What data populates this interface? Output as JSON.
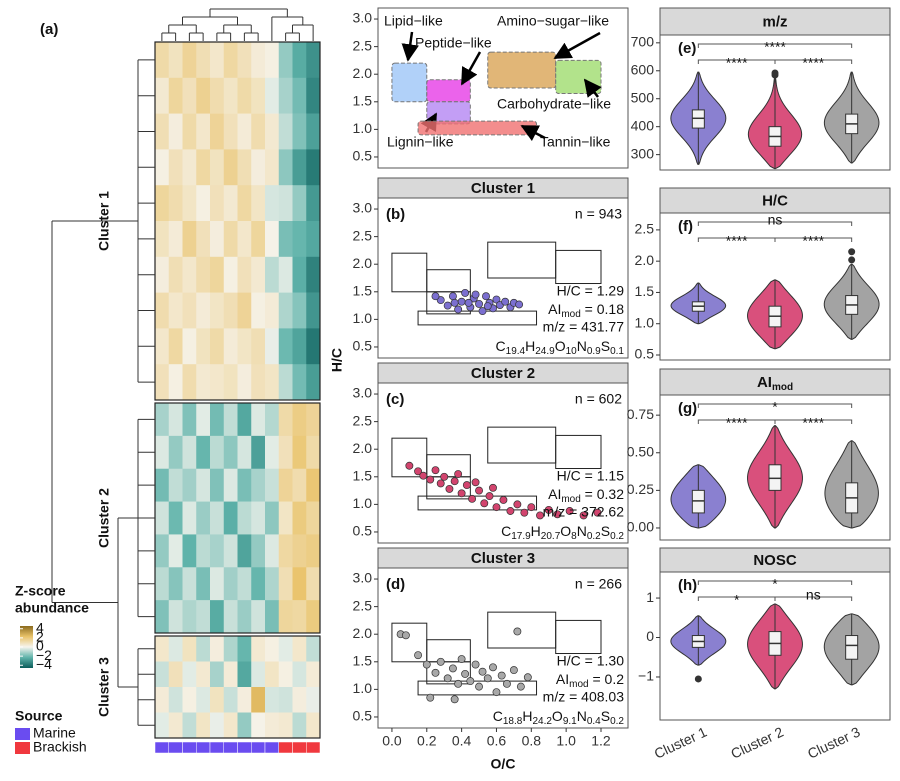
{
  "chart_data": [
    {
      "type": "heatmap",
      "panel_label": "(a)",
      "clusters": [
        {
          "label": "Cluster 1",
          "rows": [
            [
              1.2,
              0.8,
              1.5,
              1.0,
              0.6,
              1.3,
              0.9,
              0.4,
              0.2,
              -1.5,
              -2.5,
              -3.2
            ],
            [
              0.5,
              1.4,
              0.9,
              1.6,
              1.1,
              0.7,
              1.2,
              0.8,
              -0.3,
              -1.2,
              -2.0,
              -3.5
            ],
            [
              1.0,
              0.3,
              1.2,
              0.6,
              1.5,
              0.9,
              0.4,
              1.1,
              0.5,
              -0.8,
              -1.8,
              -2.8
            ],
            [
              0.2,
              0.9,
              0.5,
              1.3,
              0.8,
              1.6,
              1.0,
              0.3,
              0.6,
              -1.6,
              -2.9,
              -3.8
            ],
            [
              1.4,
              1.1,
              0.7,
              0.2,
              0.9,
              0.5,
              1.3,
              0.7,
              -0.5,
              -0.6,
              -1.5,
              -3.0
            ],
            [
              0.8,
              0.4,
              1.6,
              0.9,
              0.3,
              1.2,
              0.6,
              1.4,
              0.1,
              -1.9,
              -2.2,
              -2.6
            ],
            [
              0.3,
              1.0,
              0.6,
              1.1,
              1.4,
              0.2,
              0.9,
              0.5,
              -0.9,
              -0.4,
              -2.4,
              -3.6
            ],
            [
              1.1,
              0.6,
              0.9,
              0.4,
              0.7,
              1.0,
              1.5,
              0.2,
              0.4,
              -1.1,
              -1.7,
              -3.1
            ],
            [
              0.6,
              1.3,
              0.2,
              0.8,
              1.2,
              0.4,
              0.7,
              1.0,
              -0.2,
              -2.1,
              -2.7,
              -3.9
            ],
            [
              0.9,
              0.2,
              1.1,
              0.5,
              0.6,
              0.8,
              0.3,
              0.9,
              0.7,
              -0.9,
              -2.0,
              -2.9
            ]
          ]
        },
        {
          "label": "Cluster 2",
          "rows": [
            [
              -1.2,
              -0.5,
              -1.8,
              -0.3,
              -2.0,
              -0.8,
              -2.6,
              -0.4,
              -1.0,
              1.2,
              1.8,
              1.5
            ],
            [
              -0.4,
              -1.5,
              -0.6,
              -2.2,
              -0.9,
              -1.6,
              -0.5,
              -2.8,
              -0.3,
              0.9,
              2.0,
              1.2
            ],
            [
              -2.0,
              -0.8,
              -1.3,
              -0.5,
              -1.8,
              -0.4,
              -1.9,
              -1.2,
              -0.7,
              1.5,
              1.1,
              2.1
            ],
            [
              -0.6,
              -2.1,
              -0.4,
              -1.4,
              -0.7,
              -2.4,
              -0.9,
              -0.5,
              -1.6,
              0.7,
              1.9,
              1.4
            ],
            [
              -1.5,
              -0.3,
              -2.3,
              -0.9,
              -1.2,
              -0.6,
              -2.7,
              -1.5,
              -0.4,
              1.3,
              1.6,
              1.8
            ],
            [
              -0.9,
              -1.7,
              -0.7,
              -1.9,
              -0.4,
              -1.3,
              -0.8,
              -2.2,
              -1.1,
              1.0,
              2.2,
              1.1
            ],
            [
              -1.8,
              -0.6,
              -1.1,
              -0.8,
              -2.5,
              -0.7,
              -1.4,
              -0.6,
              -1.9,
              1.4,
              1.3,
              1.9
            ]
          ]
        },
        {
          "label": "Cluster 3",
          "rows": [
            [
              0.6,
              -0.4,
              0.8,
              -0.9,
              0.3,
              -1.1,
              -2.2,
              0.5,
              0.2,
              -0.3,
              0.6,
              -0.8
            ],
            [
              -0.7,
              0.9,
              -0.3,
              0.5,
              -1.2,
              0.4,
              -2.6,
              -0.4,
              0.7,
              0.2,
              -0.5,
              0.4
            ],
            [
              0.4,
              -0.6,
              0.2,
              -0.4,
              0.8,
              -0.7,
              0.3,
              2.5,
              -0.5,
              -0.6,
              0.3,
              -0.2
            ],
            [
              -0.3,
              0.5,
              -0.8,
              0.7,
              -0.2,
              0.6,
              -1.5,
              0.1,
              0.4,
              0.5,
              -0.9,
              0.6
            ]
          ]
        }
      ],
      "sample_source": [
        0,
        0,
        0,
        0,
        0,
        0,
        0,
        0,
        0,
        1,
        1,
        1
      ],
      "legend_title": [
        "Z-score",
        "abundance"
      ],
      "zlim": [
        -4.6,
        4.6
      ],
      "color_stops": [
        "#0b5d5b",
        "#5fb3aa",
        "#f6f4ee",
        "#e9c268",
        "#8a6a1e"
      ],
      "zticks": [
        4,
        2,
        0,
        {
          "value": -2,
          "label": "−2"
        },
        {
          "value": -4,
          "label": "−4"
        }
      ],
      "source_title": "Source",
      "sources": [
        {
          "name": "Marine",
          "color": "#6a4cf0"
        },
        {
          "name": "Brackish",
          "color": "#f0383e"
        }
      ]
    },
    {
      "type": "regions",
      "xlim": [
        -0.08,
        1.355
      ],
      "ylim": [
        0.3,
        3.2
      ],
      "yticks": [
        0.5,
        {
          "value": 1,
          "label": "1.0"
        },
        1.5,
        {
          "value": 2,
          "label": "2.0"
        },
        2.5,
        {
          "value": 3,
          "label": "3.0"
        }
      ],
      "regions": [
        {
          "name": "Lipid−like",
          "color": "#9ec5f7",
          "x": [
            0,
            0.2
          ],
          "y": [
            1.5,
            2.2
          ]
        },
        {
          "name": "Peptide−like",
          "color": "#e63ce6",
          "x": [
            0.2,
            0.45
          ],
          "y": [
            1.5,
            1.9
          ]
        },
        {
          "name": "Amino−sugar−like",
          "color": "#d9a455",
          "x": [
            0.55,
            0.94
          ],
          "y": [
            1.75,
            2.4
          ]
        },
        {
          "name": "Carbohydrate−like",
          "color": "#9fdc6e",
          "x": [
            0.94,
            1.2
          ],
          "y": [
            1.65,
            2.25
          ]
        },
        {
          "name": "Lignin−like",
          "color": "#b486f2",
          "x": [
            0.2,
            0.45
          ],
          "y": [
            1.1,
            1.5
          ]
        },
        {
          "name": "Tannin−like",
          "color": "#f07070",
          "x": [
            0.15,
            0.83
          ],
          "y": [
            0.9,
            1.15
          ]
        }
      ]
    },
    {
      "type": "scatter",
      "title": "Cluster 1",
      "panel_label": "(b)",
      "n_label": "n = 943",
      "color": "#7b6fd0",
      "xlim": [
        -0.08,
        1.355
      ],
      "ylim": [
        0.3,
        3.2
      ],
      "yticks": [
        0.5,
        {
          "value": 1,
          "label": "1.0"
        },
        1.5,
        {
          "value": 2,
          "label": "2.0"
        },
        2.5,
        {
          "value": 3,
          "label": "3.0"
        }
      ],
      "x": [
        0.28,
        0.32,
        0.35,
        0.38,
        0.4,
        0.42,
        0.45,
        0.47,
        0.5,
        0.52,
        0.54,
        0.56,
        0.58,
        0.6,
        0.62,
        0.65,
        0.68,
        0.7,
        0.73,
        0.44,
        0.36,
        0.48,
        0.55,
        0.25
      ],
      "y": [
        1.35,
        1.25,
        1.42,
        1.18,
        1.32,
        1.48,
        1.22,
        1.38,
        1.28,
        1.15,
        1.42,
        1.3,
        1.2,
        1.36,
        1.26,
        1.32,
        1.22,
        1.3,
        1.27,
        1.3,
        1.3,
        1.45,
        1.24,
        1.42
      ],
      "hc_text": "H/C = 1.29",
      "ai_main": "AI",
      "ai_sub": "mod",
      "ai_text": " = 0.18",
      "mz_text": "m/z = 431.77",
      "formula": [
        [
          "C",
          "19.4"
        ],
        [
          "H",
          "24.9"
        ],
        [
          "O",
          "10"
        ],
        [
          "N",
          "0.9"
        ],
        [
          "S",
          "0.1"
        ]
      ]
    },
    {
      "type": "scatter",
      "title": "Cluster 2",
      "panel_label": "(c)",
      "n_label": "n = 602",
      "color": "#d2446e",
      "xlim": [
        -0.08,
        1.355
      ],
      "ylim": [
        0.3,
        3.2
      ],
      "y_label": "H/C",
      "yticks": [
        0.5,
        {
          "value": 1,
          "label": "1.0"
        },
        1.5,
        {
          "value": 2,
          "label": "2.0"
        },
        2.5,
        {
          "value": 3,
          "label": "3.0"
        }
      ],
      "x": [
        0.1,
        0.15,
        0.18,
        0.22,
        0.25,
        0.28,
        0.3,
        0.33,
        0.36,
        0.4,
        0.43,
        0.46,
        0.5,
        0.53,
        0.56,
        0.6,
        0.64,
        0.68,
        0.72,
        0.76,
        0.8,
        0.85,
        0.9,
        0.95,
        1.02,
        1.1,
        1.18,
        0.38,
        0.48,
        0.58
      ],
      "y": [
        1.7,
        1.6,
        1.52,
        1.45,
        1.62,
        1.38,
        1.5,
        1.28,
        1.42,
        1.2,
        1.35,
        1.1,
        1.25,
        1.02,
        1.15,
        0.95,
        1.08,
        0.88,
        1.0,
        0.85,
        0.95,
        0.8,
        0.9,
        0.82,
        0.88,
        0.8,
        0.85,
        1.55,
        1.4,
        1.3
      ],
      "hc_text": "H/C = 1.15",
      "ai_main": "AI",
      "ai_sub": "mod",
      "ai_text": " = 0.32",
      "mz_text": "m/z = 372.62",
      "formula": [
        [
          "C",
          "17.9"
        ],
        [
          "H",
          "20.7"
        ],
        [
          "O",
          "8"
        ],
        [
          "N",
          "0.2"
        ],
        [
          "S",
          "0.2"
        ]
      ]
    },
    {
      "type": "scatter",
      "title": "Cluster 3",
      "panel_label": "(d)",
      "n_label": "n = 266",
      "color": "#a8a8a8",
      "xlim": [
        -0.08,
        1.355
      ],
      "ylim": [
        0.3,
        3.2
      ],
      "x_label": "O/C",
      "xticks": [
        {
          "value": 0,
          "label": "0.0"
        },
        0.2,
        0.4,
        0.6,
        0.8,
        {
          "value": 1,
          "label": "1.0"
        },
        1.2
      ],
      "yticks": [
        0.5,
        {
          "value": 1,
          "label": "1.0"
        },
        1.5,
        {
          "value": 2,
          "label": "2.0"
        },
        2.5,
        {
          "value": 3,
          "label": "3.0"
        }
      ],
      "x": [
        0.05,
        0.08,
        0.15,
        0.2,
        0.25,
        0.28,
        0.32,
        0.35,
        0.38,
        0.4,
        0.42,
        0.45,
        0.48,
        0.5,
        0.52,
        0.55,
        0.58,
        0.6,
        0.63,
        0.66,
        0.7,
        0.74,
        0.78,
        0.72,
        0.22,
        0.36
      ],
      "y": [
        2.0,
        1.98,
        1.62,
        1.45,
        1.3,
        1.5,
        1.2,
        1.38,
        1.1,
        1.55,
        1.28,
        1.15,
        1.45,
        1.05,
        1.32,
        1.2,
        1.4,
        0.95,
        1.25,
        1.1,
        1.35,
        1.05,
        1.22,
        2.05,
        0.85,
        0.82
      ],
      "hc_text": "H/C = 1.30",
      "ai_main": "AI",
      "ai_sub": "mod",
      "ai_text": " = 0.2",
      "mz_text": "m/z = 408.03",
      "formula": [
        [
          "C",
          "18.8"
        ],
        [
          "H",
          "24.2"
        ],
        [
          "O",
          "9.1"
        ],
        [
          "N",
          "0.4"
        ],
        [
          "S",
          "0.2"
        ]
      ]
    },
    {
      "type": "violin",
      "title": "m/z",
      "panel_label": "(e)",
      "colors": [
        "#8a80d0",
        "#d9507c",
        "#a3a3a3"
      ],
      "ylim": [
        245,
        728
      ],
      "yticks": [
        300,
        400,
        500,
        600,
        700
      ],
      "stats": [
        {
          "min": 265,
          "q1": 395,
          "median": 430,
          "q3": 460,
          "max": 595,
          "outliers": []
        },
        {
          "min": 250,
          "q1": 330,
          "median": 365,
          "q3": 400,
          "max": 575,
          "outliers": [
            585,
            592
          ]
        },
        {
          "min": 270,
          "q1": 375,
          "median": 410,
          "q3": 445,
          "max": 595,
          "outliers": []
        }
      ],
      "signif": [
        {
          "pair": [
            0,
            2
          ],
          "label": "****"
        },
        {
          "pair": [
            0,
            1
          ],
          "label": "****"
        },
        {
          "pair": [
            1,
            2
          ],
          "label": "****"
        }
      ]
    },
    {
      "type": "violin",
      "title": "H/C",
      "panel_label": "(f)",
      "colors": [
        "#8a80d0",
        "#d9507c",
        "#a3a3a3"
      ],
      "ylim": [
        0.42,
        2.77
      ],
      "yticks": [
        0.5,
        {
          "value": 1,
          "label": "1.0"
        },
        1.5,
        {
          "value": 2,
          "label": "2.0"
        },
        2.5
      ],
      "stats": [
        {
          "min": 1.0,
          "q1": 1.2,
          "median": 1.28,
          "q3": 1.35,
          "max": 1.65,
          "outliers": []
        },
        {
          "min": 0.6,
          "q1": 0.95,
          "median": 1.12,
          "q3": 1.28,
          "max": 1.7,
          "outliers": []
        },
        {
          "min": 0.75,
          "q1": 1.15,
          "median": 1.3,
          "q3": 1.45,
          "max": 1.95,
          "outliers": [
            2.02,
            2.15
          ]
        }
      ],
      "signif": [
        {
          "pair": [
            0,
            2
          ],
          "label": "ns"
        },
        {
          "pair": [
            0,
            1
          ],
          "label": "****"
        },
        {
          "pair": [
            1,
            2
          ],
          "label": "****"
        }
      ]
    },
    {
      "type": "violin",
      "title": "AI",
      "title_sub": "mod",
      "panel_label": "(g)",
      "colors": [
        "#8a80d0",
        "#d9507c",
        "#a3a3a3"
      ],
      "ylim": [
        -0.08,
        0.884
      ],
      "yticks": [
        {
          "value": 0,
          "label": "0.00"
        },
        0.25,
        {
          "value": 0.5,
          "label": "0.50"
        },
        0.75
      ],
      "stats": [
        {
          "min": 0,
          "q1": 0.1,
          "median": 0.18,
          "q3": 0.25,
          "max": 0.42,
          "outliers": []
        },
        {
          "min": 0,
          "q1": 0.25,
          "median": 0.33,
          "q3": 0.42,
          "max": 0.68,
          "outliers": []
        },
        {
          "min": 0,
          "q1": 0.1,
          "median": 0.2,
          "q3": 0.3,
          "max": 0.58,
          "outliers": []
        }
      ],
      "signif": [
        {
          "pair": [
            0,
            2
          ],
          "label": "*"
        },
        {
          "pair": [
            0,
            1
          ],
          "label": "****"
        },
        {
          "pair": [
            1,
            2
          ],
          "label": "****"
        }
      ]
    },
    {
      "type": "violin",
      "title": "NOSC",
      "panel_label": "(h)",
      "colors": [
        "#8a80d0",
        "#d9507c",
        "#a3a3a3"
      ],
      "ylim": [
        -2.09,
        1.66
      ],
      "yticks": [
        {
          "value": -1,
          "label": "−1"
        },
        0,
        1
      ],
      "categories": [
        "Cluster 1",
        "Cluster 2",
        "Cluster 3"
      ],
      "stats": [
        {
          "min": -0.7,
          "q1": -0.25,
          "median": -0.1,
          "q3": 0.05,
          "max": 0.55,
          "outliers": [
            -1.05
          ]
        },
        {
          "min": -1.3,
          "q1": -0.45,
          "median": -0.15,
          "q3": 0.15,
          "max": 0.85,
          "outliers": []
        },
        {
          "min": -1.2,
          "q1": -0.55,
          "median": -0.2,
          "q3": 0.05,
          "max": 0.6,
          "outliers": []
        }
      ],
      "signif": [
        {
          "pair": [
            0,
            2
          ],
          "label": "*"
        },
        {
          "pair": [
            0,
            1
          ],
          "label": "*"
        },
        {
          "pair": [
            1,
            2
          ],
          "label": "ns"
        }
      ]
    }
  ]
}
